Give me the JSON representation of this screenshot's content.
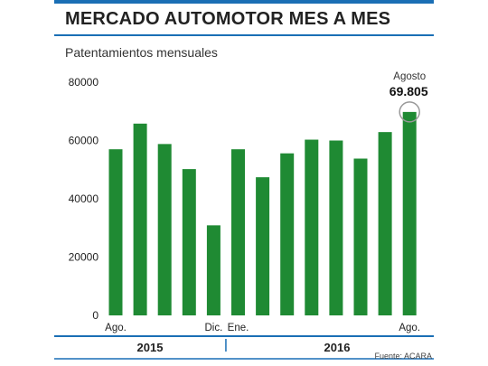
{
  "title": "MERCADO AUTOMOTOR MES A MES",
  "subtitle": "Patentamientos mensuales",
  "source": "Fuente: ACARA",
  "colors": {
    "bar": "#1f8a33",
    "accent": "#1a6fb5",
    "highlight_ring": "#999999"
  },
  "chart_data": {
    "type": "bar",
    "title": "MERCADO AUTOMOTOR MES A MES",
    "subtitle": "Patentamientos mensuales",
    "ylim": [
      0,
      80000
    ],
    "yticks": [
      "80000",
      "60000",
      "40000",
      "20000",
      "0"
    ],
    "ytick_values": [
      80000,
      60000,
      40000,
      20000,
      0
    ],
    "categories": [
      "Ago.",
      "",
      "",
      "",
      "Dic.",
      "Ene.",
      "",
      "",
      "",
      "",
      "",
      "",
      "Ago."
    ],
    "values": [
      57000,
      65800,
      58800,
      50200,
      30900,
      57000,
      47400,
      55600,
      60300,
      60000,
      53800,
      62900,
      69805
    ],
    "groups": [
      {
        "label": "2015",
        "start": 0,
        "end": 4
      },
      {
        "label": "2016",
        "start": 5,
        "end": 12
      }
    ],
    "annotation": {
      "index": 12,
      "month": "Agosto",
      "value_label": "69.805"
    },
    "grid": false,
    "legend": "none"
  }
}
